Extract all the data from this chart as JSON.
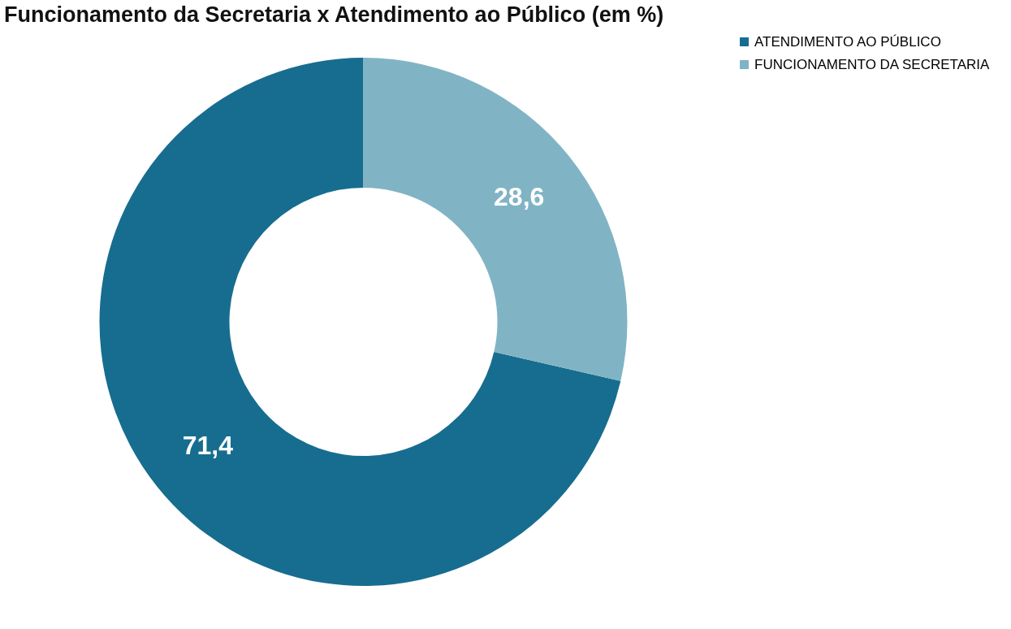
{
  "chart_data": {
    "type": "donut",
    "title": "Funcionamento da Secretaria x Atendimento ao Público (em %)",
    "categories": [
      "ATENDIMENTO AO PÚBLICO",
      "FUNCIONAMENTO DA SECRETARIA"
    ],
    "values": [
      71.4,
      28.6
    ],
    "colors": [
      "#176d8f",
      "#80b4c5"
    ],
    "value_labels": [
      "71,4",
      "28,6"
    ],
    "legend": "right"
  }
}
